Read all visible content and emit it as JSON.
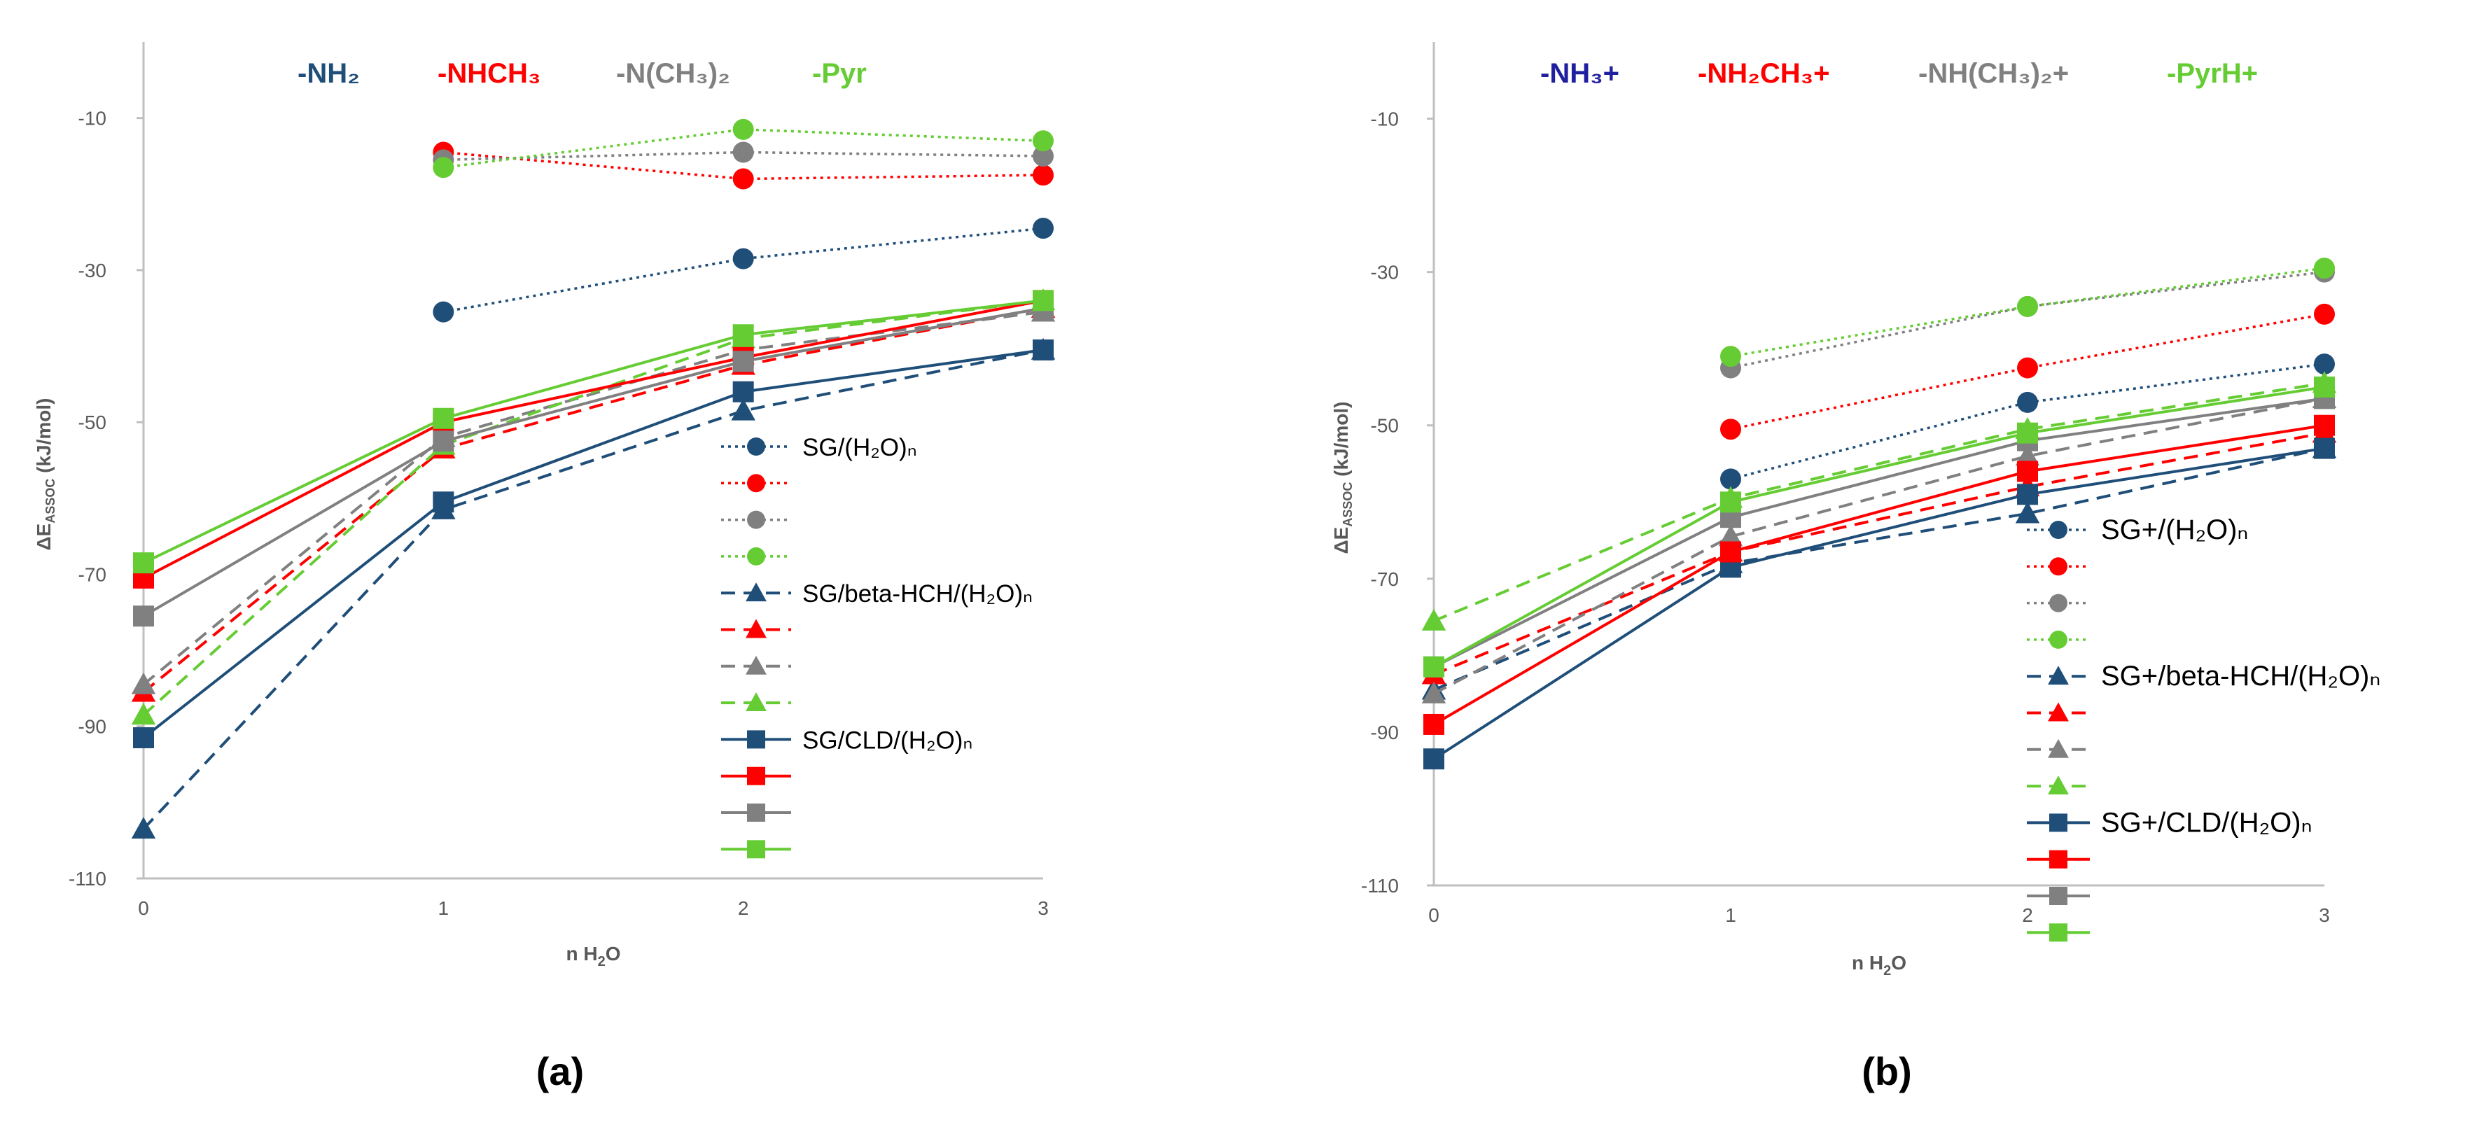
{
  "panel_labels": [
    "(a)",
    "(b)"
  ],
  "colors": {
    "blue": "#1F4E79",
    "red": "#FF0000",
    "gray": "#808080",
    "green": "#66CC33",
    "axis": "#BFBFBF",
    "text": "#595959",
    "navy": "#1F1FA0"
  },
  "chart_data": [
    {
      "type": "line",
      "panel": "(a)",
      "title_labels": [
        {
          "text": "-NH₂",
          "color_key": "blue"
        },
        {
          "text": "-NHCH₃",
          "color_key": "red"
        },
        {
          "text": "-N(CH₃)₂",
          "color_key": "gray"
        },
        {
          "text": "-Pyr",
          "color_key": "green"
        }
      ],
      "ylabel_main": "ΔE",
      "ylabel_sub": "ASSOC",
      "ylabel_rest": " (kJ/mol)",
      "xlabel_main": "n H",
      "xlabel_sub": "2",
      "xlabel_rest": "O",
      "x": [
        0,
        1,
        2,
        3
      ],
      "ylim": [
        -110,
        0
      ],
      "yticks": [
        -10,
        -30,
        -50,
        -70,
        -90,
        -110
      ],
      "legend_entries": [
        "SG/(H₂O)ₙ",
        "",
        "",
        "",
        "SG/beta-HCH/(H₂O)ₙ",
        "",
        "",
        "",
        "SG/CLD/(H₂O)ₙ",
        "",
        "",
        ""
      ],
      "series": [
        {
          "name": "SG/(H₂O)ₙ -NH₂",
          "color_key": "blue",
          "marker": "circle",
          "dash": "dotted",
          "values": [
            null,
            -35.5,
            -28.5,
            -24.5
          ]
        },
        {
          "name": "SG/(H₂O)ₙ -NHCH₃",
          "color_key": "red",
          "marker": "circle",
          "dash": "dotted",
          "values": [
            null,
            -14.5,
            -18,
            -17.5
          ]
        },
        {
          "name": "SG/(H₂O)ₙ -N(CH₃)₂",
          "color_key": "gray",
          "marker": "circle",
          "dash": "dotted",
          "values": [
            null,
            -15.5,
            -14.5,
            -15
          ]
        },
        {
          "name": "SG/(H₂O)ₙ -Pyr",
          "color_key": "green",
          "marker": "circle",
          "dash": "dotted",
          "values": [
            null,
            -16.5,
            -11.5,
            -13
          ]
        },
        {
          "name": "SG/beta-HCH/(H₂O)ₙ -NH₂",
          "color_key": "blue",
          "marker": "triangle",
          "dash": "dashed",
          "values": [
            -103.5,
            -61.5,
            -48.5,
            -40.5
          ]
        },
        {
          "name": "SG/beta-HCH/(H₂O)ₙ -NHCH₃",
          "color_key": "red",
          "marker": "triangle",
          "dash": "dashed",
          "values": [
            -85.5,
            -53.5,
            -42.5,
            -35
          ]
        },
        {
          "name": "SG/beta-HCH/(H₂O)ₙ -N(CH₃)₂",
          "color_key": "gray",
          "marker": "triangle",
          "dash": "dashed",
          "values": [
            -84.5,
            -52,
            -40.5,
            -35.5
          ]
        },
        {
          "name": "SG/beta-HCH/(H₂O)ₙ -Pyr",
          "color_key": "green",
          "marker": "triangle",
          "dash": "dashed",
          "values": [
            -88.5,
            -53,
            -39,
            -34
          ]
        },
        {
          "name": "SG/CLD/(H₂O)ₙ -NH₂",
          "color_key": "blue",
          "marker": "square",
          "dash": "solid",
          "values": [
            -91.5,
            -60.5,
            -46,
            -40.5
          ]
        },
        {
          "name": "SG/CLD/(H₂O)ₙ -NHCH₃",
          "color_key": "red",
          "marker": "square",
          "dash": "solid",
          "values": [
            -70.5,
            -50,
            -41.5,
            -34
          ]
        },
        {
          "name": "SG/CLD/(H₂O)ₙ -N(CH₃)₂",
          "color_key": "gray",
          "marker": "square",
          "dash": "solid",
          "values": [
            -75.5,
            -52.5,
            -42,
            -35
          ]
        },
        {
          "name": "SG/CLD/(H₂O)ₙ -Pyr",
          "color_key": "green",
          "marker": "square",
          "dash": "solid",
          "values": [
            -68.5,
            -49.5,
            -38.5,
            -34
          ]
        }
      ]
    },
    {
      "type": "line",
      "panel": "(b)",
      "title_labels": [
        {
          "text": "-NH₃+",
          "color_key": "navy"
        },
        {
          "text": "-NH₂CH₃+",
          "color_key": "red"
        },
        {
          "text": "-NH(CH₃)₂+",
          "color_key": "gray"
        },
        {
          "text": "-PyrH+",
          "color_key": "green"
        }
      ],
      "ylabel_main": "ΔE",
      "ylabel_sub": "ASSOC",
      "ylabel_rest": " (kJ/mol)",
      "xlabel_main": "n H",
      "xlabel_sub": "2",
      "xlabel_rest": "O",
      "x": [
        0,
        1,
        2,
        3
      ],
      "ylim": [
        -110,
        0
      ],
      "yticks": [
        -10,
        -30,
        -50,
        -70,
        -90,
        -110
      ],
      "legend_entries": [
        "SG+/(H₂O)ₙ",
        "",
        "",
        "",
        "SG+/beta-HCH/(H₂O)ₙ",
        "",
        "",
        "",
        "SG+/CLD/(H₂O)ₙ",
        "",
        "",
        ""
      ],
      "series": [
        {
          "name": "SG+/(H₂O)ₙ -NH₃+",
          "color_key": "blue",
          "marker": "circle",
          "dash": "dotted",
          "values": [
            null,
            -57,
            -47,
            -42
          ]
        },
        {
          "name": "SG+/(H₂O)ₙ -NH₂CH₃+",
          "color_key": "red",
          "marker": "circle",
          "dash": "dotted",
          "values": [
            null,
            -50.5,
            -42.5,
            -35.5
          ]
        },
        {
          "name": "SG+/(H₂O)ₙ -NH(CH₃)₂+",
          "color_key": "gray",
          "marker": "circle",
          "dash": "dotted",
          "values": [
            null,
            -42.5,
            -34.5,
            -30
          ]
        },
        {
          "name": "SG+/(H₂O)ₙ -PyrH+",
          "color_key": "green",
          "marker": "circle",
          "dash": "dotted",
          "values": [
            null,
            -41,
            -34.5,
            -29.5
          ]
        },
        {
          "name": "SG+/beta-HCH/(H₂O)ₙ -NH₃+",
          "color_key": "blue",
          "marker": "triangle",
          "dash": "dashed",
          "values": [
            -84.5,
            -68,
            -61.5,
            -53
          ]
        },
        {
          "name": "SG+/beta-HCH/(H₂O)ₙ -NH₂CH₃+",
          "color_key": "red",
          "marker": "triangle",
          "dash": "dashed",
          "values": [
            -82.5,
            -66.5,
            -58,
            -51
          ]
        },
        {
          "name": "SG+/beta-HCH/(H₂O)ₙ -NH(CH₃)₂+",
          "color_key": "gray",
          "marker": "triangle",
          "dash": "dashed",
          "values": [
            -85,
            -64.5,
            -54,
            -46.5
          ]
        },
        {
          "name": "SG+/beta-HCH/(H₂O)ₙ -PyrH+",
          "color_key": "green",
          "marker": "triangle",
          "dash": "dashed",
          "values": [
            -75.5,
            -59.5,
            -50.5,
            -44.5
          ]
        },
        {
          "name": "SG+/CLD/(H₂O)ₙ -NH₃+",
          "color_key": "blue",
          "marker": "square",
          "dash": "solid",
          "values": [
            -93.5,
            -68.5,
            -59,
            -53
          ]
        },
        {
          "name": "SG+/CLD/(H₂O)ₙ -NH₂CH₃+",
          "color_key": "red",
          "marker": "square",
          "dash": "solid",
          "values": [
            -89,
            -66.5,
            -56,
            -50
          ]
        },
        {
          "name": "SG+/CLD/(H₂O)ₙ -NH(CH₃)₂+",
          "color_key": "gray",
          "marker": "square",
          "dash": "solid",
          "values": [
            -81.5,
            -62,
            -52,
            -46.5
          ]
        },
        {
          "name": "SG+/CLD/(H₂O)ₙ -PyrH+",
          "color_key": "green",
          "marker": "square",
          "dash": "solid",
          "values": [
            -81.5,
            -60,
            -51,
            -45
          ]
        }
      ]
    }
  ]
}
